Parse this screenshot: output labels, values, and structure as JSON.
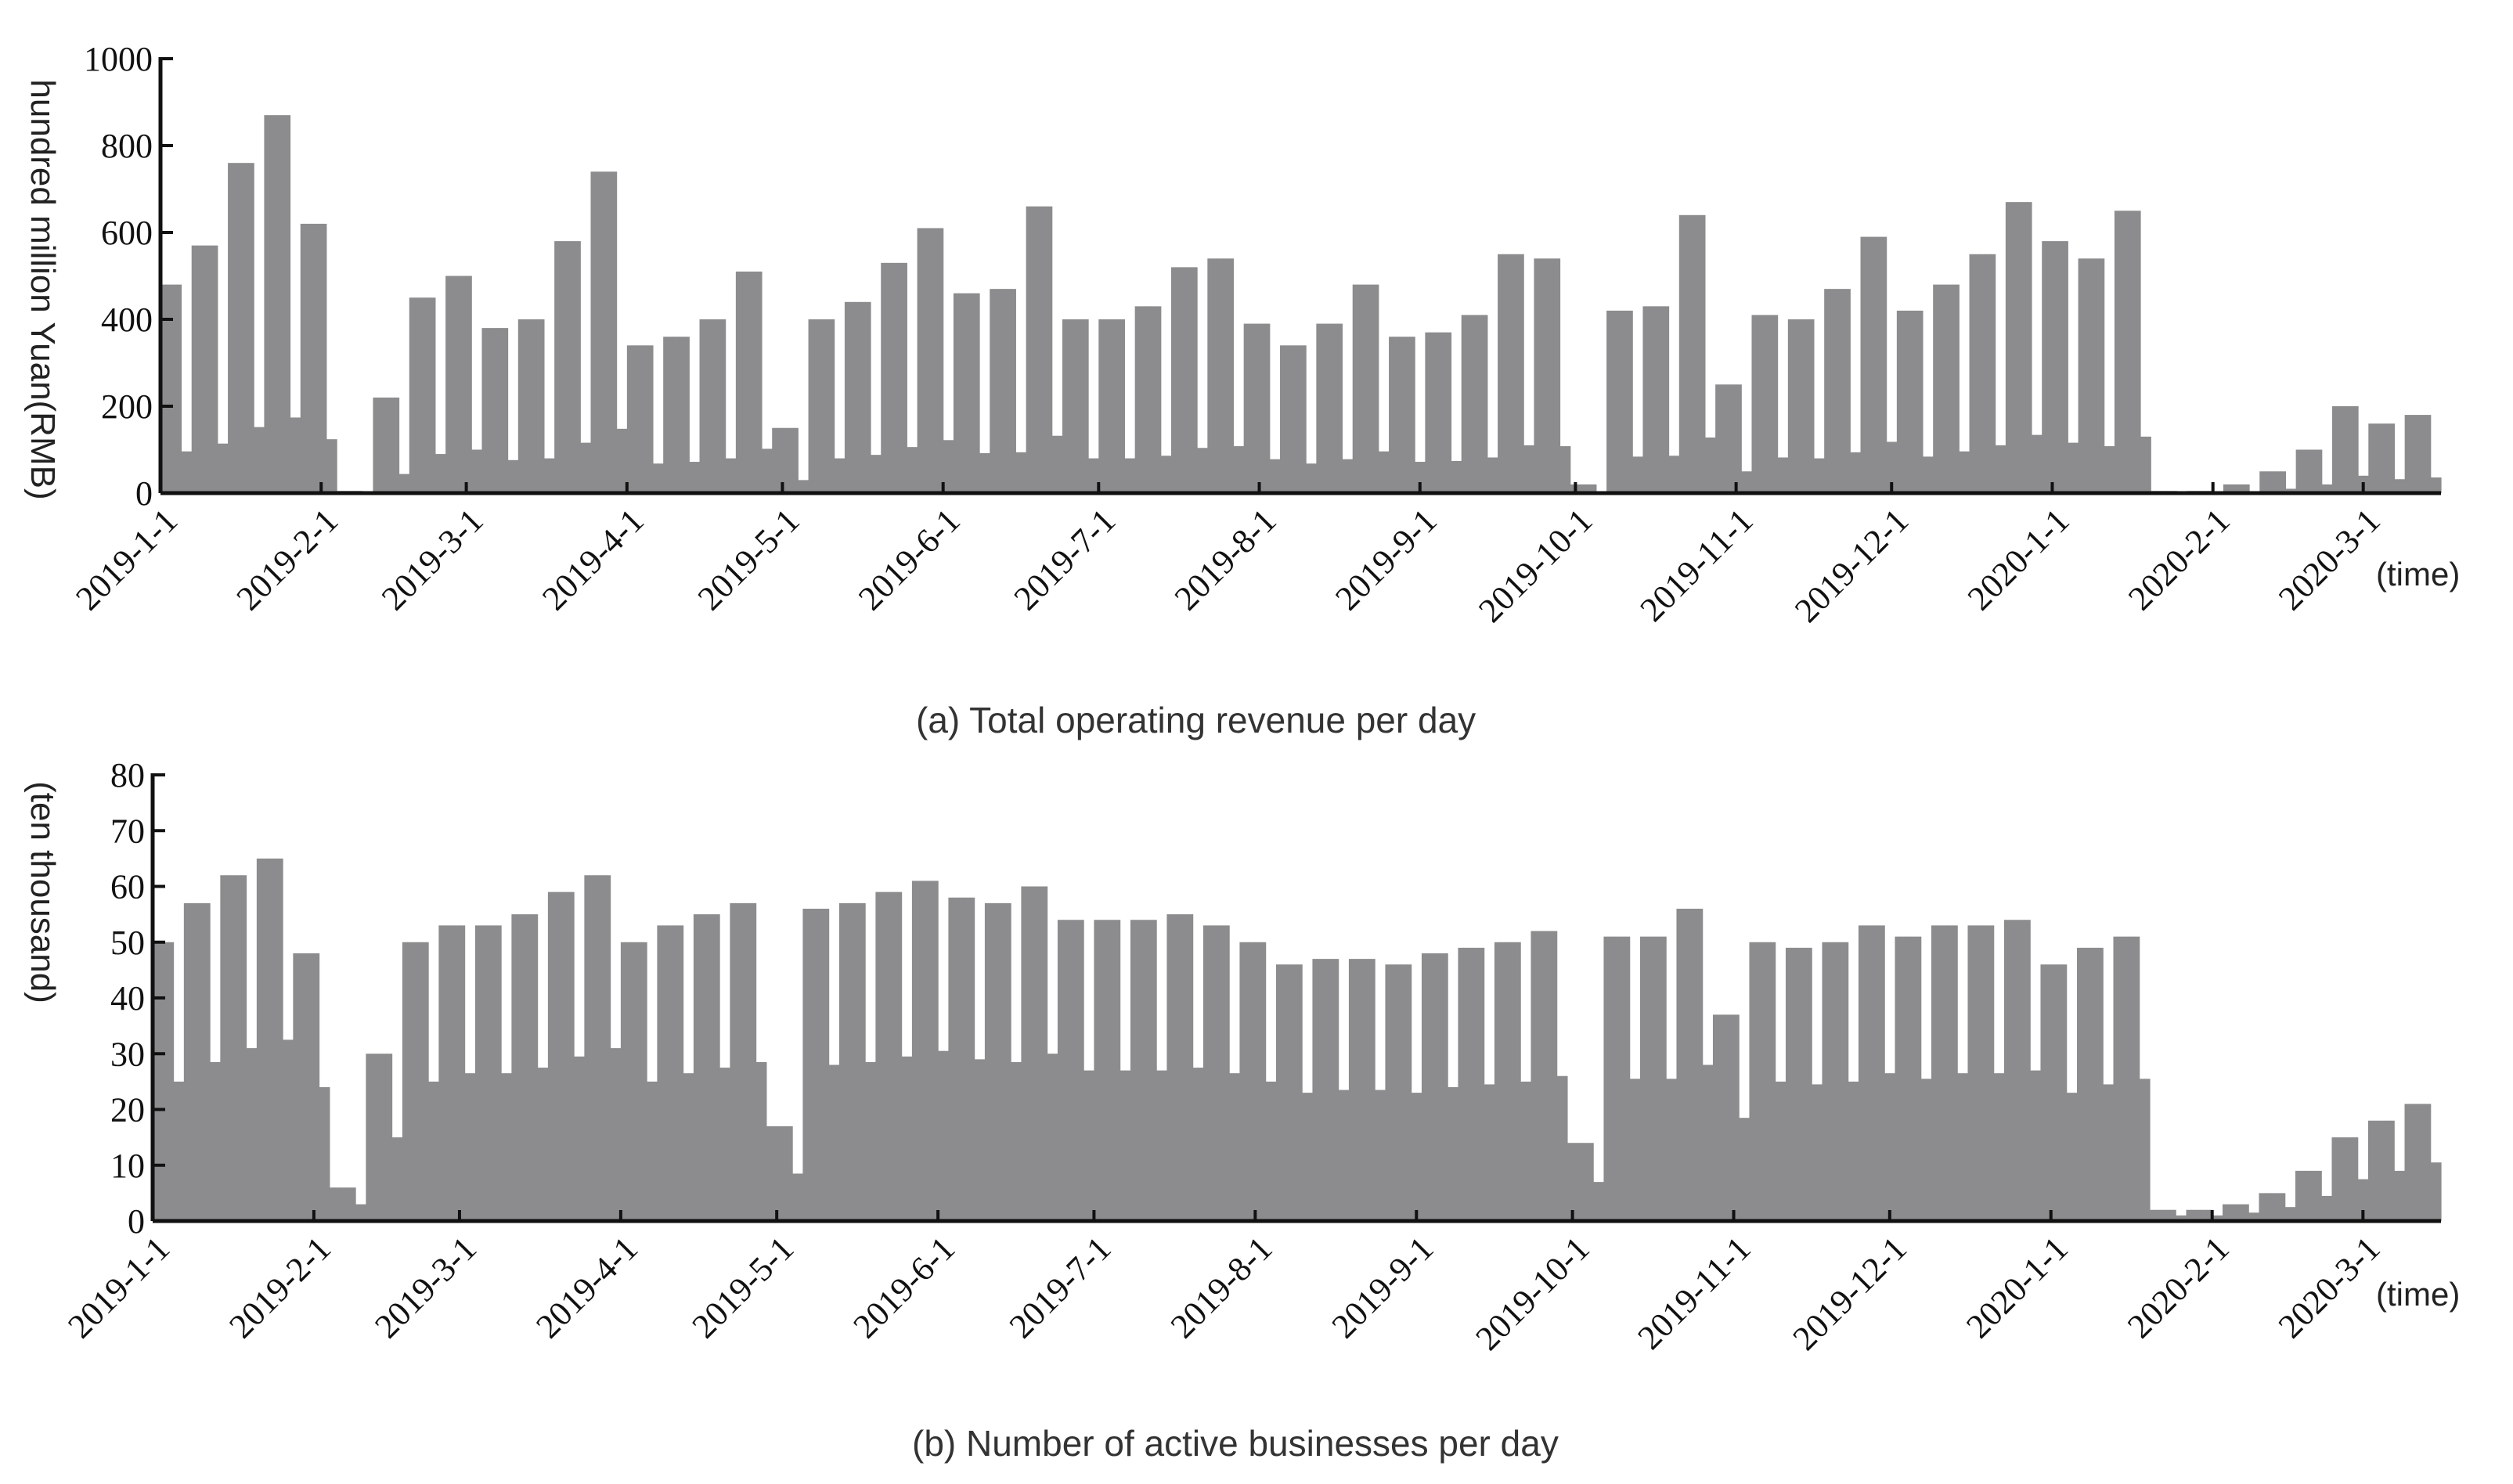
{
  "chart_data": [
    {
      "type": "bar",
      "caption": "(a)  Total operating revenue per day",
      "ylabel": "hundred million Yuan(RMB)",
      "x_unit": "(time)",
      "x_range": [
        "2019-1-1",
        "2020-3-16"
      ],
      "ylim": [
        0,
        1000
      ],
      "yticks": [
        0,
        200,
        400,
        600,
        800,
        1000
      ],
      "xtick_labels": [
        "2019-1-1",
        "2019-2-1",
        "2019-3-1",
        "2019-4-1",
        "2019-5-1",
        "2019-6-1",
        "2019-7-1",
        "2019-8-1",
        "2019-9-1",
        "2019-10-1",
        "2019-11-1",
        "2019-12-1",
        "2020-1-1",
        "2020-2-1",
        "2020-3-1"
      ],
      "bar_color": "#8c8c8e",
      "grid": false,
      "pattern": "weekly cycle: high on weekdays, low on weekends",
      "weekday_levels": [
        {
          "from": "2019-1-1",
          "value": 480
        },
        {
          "from": "2019-1-7",
          "value": 570
        },
        {
          "from": "2019-1-14",
          "value": 760
        },
        {
          "from": "2019-1-21",
          "value": 870
        },
        {
          "from": "2019-1-28",
          "value": 620
        },
        {
          "from": "2019-2-4",
          "value": 5
        },
        {
          "from": "2019-2-11",
          "value": 220
        },
        {
          "from": "2019-2-18",
          "value": 450
        },
        {
          "from": "2019-2-25",
          "value": 500
        },
        {
          "from": "2019-3-4",
          "value": 380
        },
        {
          "from": "2019-3-11",
          "value": 400
        },
        {
          "from": "2019-3-18",
          "value": 580
        },
        {
          "from": "2019-3-25",
          "value": 740
        },
        {
          "from": "2019-4-1",
          "value": 340
        },
        {
          "from": "2019-4-8",
          "value": 360
        },
        {
          "from": "2019-4-15",
          "value": 400
        },
        {
          "from": "2019-4-22",
          "value": 510
        },
        {
          "from": "2019-4-29",
          "value": 150
        },
        {
          "from": "2019-5-6",
          "value": 400
        },
        {
          "from": "2019-5-13",
          "value": 440
        },
        {
          "from": "2019-5-20",
          "value": 530
        },
        {
          "from": "2019-5-27",
          "value": 610
        },
        {
          "from": "2019-6-3",
          "value": 460
        },
        {
          "from": "2019-6-10",
          "value": 470
        },
        {
          "from": "2019-6-17",
          "value": 660
        },
        {
          "from": "2019-6-24",
          "value": 400
        },
        {
          "from": "2019-7-1",
          "value": 400
        },
        {
          "from": "2019-7-8",
          "value": 430
        },
        {
          "from": "2019-7-15",
          "value": 520
        },
        {
          "from": "2019-7-22",
          "value": 540
        },
        {
          "from": "2019-7-29",
          "value": 390
        },
        {
          "from": "2019-8-5",
          "value": 340
        },
        {
          "from": "2019-8-12",
          "value": 390
        },
        {
          "from": "2019-8-19",
          "value": 480
        },
        {
          "from": "2019-8-26",
          "value": 360
        },
        {
          "from": "2019-9-2",
          "value": 370
        },
        {
          "from": "2019-9-9",
          "value": 410
        },
        {
          "from": "2019-9-16",
          "value": 550
        },
        {
          "from": "2019-9-23",
          "value": 540
        },
        {
          "from": "2019-9-30",
          "value": 20
        },
        {
          "from": "2019-10-7",
          "value": 420
        },
        {
          "from": "2019-10-14",
          "value": 430
        },
        {
          "from": "2019-10-21",
          "value": 640
        },
        {
          "from": "2019-10-28",
          "value": 250
        },
        {
          "from": "2019-11-4",
          "value": 410
        },
        {
          "from": "2019-11-11",
          "value": 400
        },
        {
          "from": "2019-11-18",
          "value": 470
        },
        {
          "from": "2019-11-25",
          "value": 590
        },
        {
          "from": "2019-12-2",
          "value": 420
        },
        {
          "from": "2019-12-9",
          "value": 480
        },
        {
          "from": "2019-12-16",
          "value": 550
        },
        {
          "from": "2019-12-23",
          "value": 670
        },
        {
          "from": "2019-12-30",
          "value": 580
        },
        {
          "from": "2020-1-6",
          "value": 540
        },
        {
          "from": "2020-1-13",
          "value": 650
        },
        {
          "from": "2020-1-20",
          "value": 5
        },
        {
          "from": "2020-1-27",
          "value": 5
        },
        {
          "from": "2020-2-3",
          "value": 20
        },
        {
          "from": "2020-2-10",
          "value": 50
        },
        {
          "from": "2020-2-17",
          "value": 100
        },
        {
          "from": "2020-2-24",
          "value": 200
        },
        {
          "from": "2020-3-2",
          "value": 160
        },
        {
          "from": "2020-3-9",
          "value": 180
        }
      ],
      "weekend_ratio": 0.2
    },
    {
      "type": "bar",
      "caption": "(b)  Number of active businesses per day",
      "ylabel": "(ten thousand)",
      "x_unit": "(time)",
      "x_range": [
        "2019-1-1",
        "2020-3-16"
      ],
      "ylim": [
        0,
        80
      ],
      "yticks": [
        0,
        10,
        20,
        30,
        40,
        50,
        60,
        70,
        80
      ],
      "xtick_labels": [
        "2019-1-1",
        "2019-2-1",
        "2019-3-1",
        "2019-4-1",
        "2019-5-1",
        "2019-6-1",
        "2019-7-1",
        "2019-8-1",
        "2019-9-1",
        "2019-10-1",
        "2019-11-1",
        "2019-12-1",
        "2020-1-1",
        "2020-2-1",
        "2020-3-1"
      ],
      "bar_color": "#8c8c8e",
      "grid": false,
      "pattern": "weekly cycle: high on weekdays, low on weekends",
      "weekday_levels": [
        {
          "from": "2019-1-1",
          "value": 50
        },
        {
          "from": "2019-1-7",
          "value": 57
        },
        {
          "from": "2019-1-14",
          "value": 62
        },
        {
          "from": "2019-1-21",
          "value": 65
        },
        {
          "from": "2019-1-28",
          "value": 48
        },
        {
          "from": "2019-2-4",
          "value": 6
        },
        {
          "from": "2019-2-11",
          "value": 30
        },
        {
          "from": "2019-2-18",
          "value": 50
        },
        {
          "from": "2019-2-25",
          "value": 53
        },
        {
          "from": "2019-3-4",
          "value": 53
        },
        {
          "from": "2019-3-11",
          "value": 55
        },
        {
          "from": "2019-3-18",
          "value": 59
        },
        {
          "from": "2019-3-25",
          "value": 62
        },
        {
          "from": "2019-4-1",
          "value": 50
        },
        {
          "from": "2019-4-8",
          "value": 53
        },
        {
          "from": "2019-4-15",
          "value": 55
        },
        {
          "from": "2019-4-22",
          "value": 57
        },
        {
          "from": "2019-4-29",
          "value": 17
        },
        {
          "from": "2019-5-6",
          "value": 56
        },
        {
          "from": "2019-5-13",
          "value": 57
        },
        {
          "from": "2019-5-20",
          "value": 59
        },
        {
          "from": "2019-5-27",
          "value": 61
        },
        {
          "from": "2019-6-3",
          "value": 58
        },
        {
          "from": "2019-6-10",
          "value": 57
        },
        {
          "from": "2019-6-17",
          "value": 60
        },
        {
          "from": "2019-6-24",
          "value": 54
        },
        {
          "from": "2019-7-1",
          "value": 54
        },
        {
          "from": "2019-7-8",
          "value": 54
        },
        {
          "from": "2019-7-15",
          "value": 55
        },
        {
          "from": "2019-7-22",
          "value": 53
        },
        {
          "from": "2019-7-29",
          "value": 50
        },
        {
          "from": "2019-8-5",
          "value": 46
        },
        {
          "from": "2019-8-12",
          "value": 47
        },
        {
          "from": "2019-8-19",
          "value": 47
        },
        {
          "from": "2019-8-26",
          "value": 46
        },
        {
          "from": "2019-9-2",
          "value": 48
        },
        {
          "from": "2019-9-9",
          "value": 49
        },
        {
          "from": "2019-9-16",
          "value": 50
        },
        {
          "from": "2019-9-23",
          "value": 52
        },
        {
          "from": "2019-9-30",
          "value": 14
        },
        {
          "from": "2019-10-7",
          "value": 51
        },
        {
          "from": "2019-10-14",
          "value": 51
        },
        {
          "from": "2019-10-21",
          "value": 56
        },
        {
          "from": "2019-10-28",
          "value": 37
        },
        {
          "from": "2019-11-4",
          "value": 50
        },
        {
          "from": "2019-11-11",
          "value": 49
        },
        {
          "from": "2019-11-18",
          "value": 50
        },
        {
          "from": "2019-11-25",
          "value": 53
        },
        {
          "from": "2019-12-2",
          "value": 51
        },
        {
          "from": "2019-12-9",
          "value": 53
        },
        {
          "from": "2019-12-16",
          "value": 53
        },
        {
          "from": "2019-12-23",
          "value": 54
        },
        {
          "from": "2019-12-30",
          "value": 46
        },
        {
          "from": "2020-1-6",
          "value": 49
        },
        {
          "from": "2020-1-13",
          "value": 51
        },
        {
          "from": "2020-1-20",
          "value": 2
        },
        {
          "from": "2020-1-27",
          "value": 2
        },
        {
          "from": "2020-2-3",
          "value": 3
        },
        {
          "from": "2020-2-10",
          "value": 5
        },
        {
          "from": "2020-2-17",
          "value": 9
        },
        {
          "from": "2020-2-24",
          "value": 15
        },
        {
          "from": "2020-3-2",
          "value": 18
        },
        {
          "from": "2020-3-9",
          "value": 21
        }
      ],
      "weekend_ratio": 0.5
    }
  ]
}
